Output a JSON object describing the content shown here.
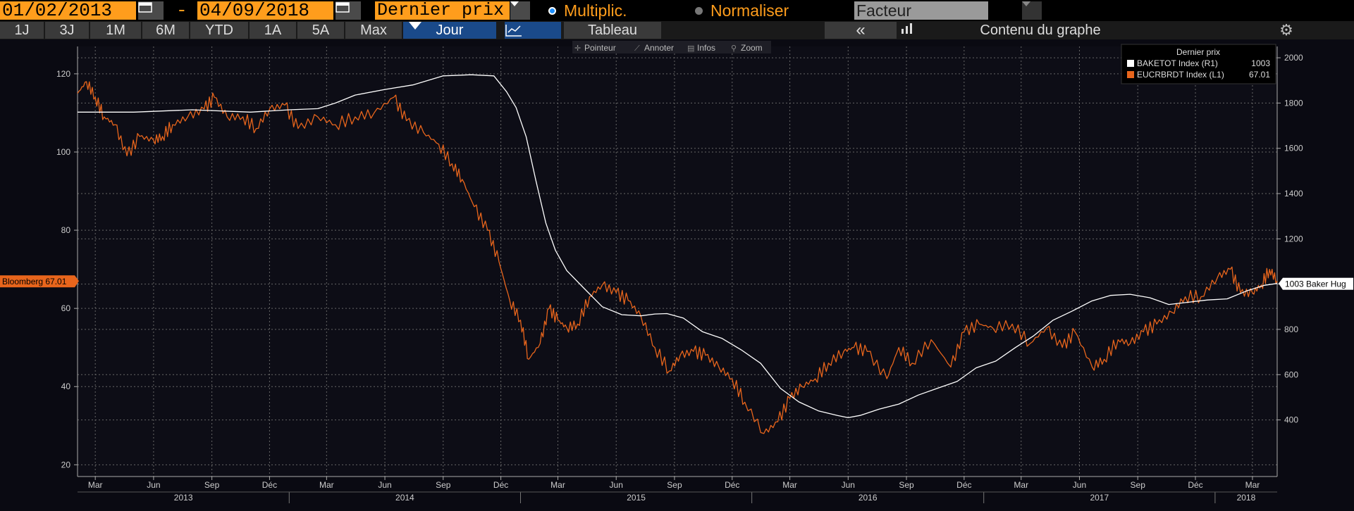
{
  "toolbar": {
    "start_date": "01/02/2013",
    "end_date": "04/09/2018",
    "dash": "-",
    "price_field": "Dernier prix",
    "multiplic_label": "Multiplic.",
    "normaliser_label": "Normaliser",
    "factor_placeholder": "Facteur"
  },
  "tabs": {
    "periods": [
      "1J",
      "3J",
      "1M",
      "6M",
      "YTD",
      "1A",
      "5A",
      "Max"
    ],
    "frequency": "Jour",
    "table_label": "Tableau",
    "collapse_label": "«",
    "chart_content_label": "Contenu du graphe"
  },
  "chart_tools": {
    "pointer": "Pointeur",
    "annotate": "Annoter",
    "info": "Infos",
    "zoom": "Zoom"
  },
  "legend": {
    "title": "Dernier prix",
    "entries": [
      {
        "name": "BAKETOT Index  (R1)",
        "value": "1003",
        "color": "#ffffff"
      },
      {
        "name": "EUCRBRDT Index  (L1)",
        "value": "67.01",
        "color": "#e8651c"
      }
    ]
  },
  "tags": {
    "left": "Bloomberg 67.01",
    "right": "1003 Baker Hug"
  },
  "colors": {
    "brent": "#e8651c",
    "baker": "#ffffff",
    "accent": "#ff9d1c",
    "grid": "#666666"
  },
  "chart_data": {
    "type": "line",
    "x_ticks": [
      "Mar",
      "Jun",
      "Sep",
      "Déc",
      "Mar",
      "Jun",
      "Sep",
      "Déc",
      "Mar",
      "Jun",
      "Sep",
      "Déc",
      "Mar",
      "Jun",
      "Sep",
      "Déc",
      "Mar",
      "Jun",
      "Sep",
      "Déc",
      "Mar"
    ],
    "year_labels": [
      "2013",
      "2014",
      "2015",
      "2016",
      "2017",
      "2018"
    ],
    "left_axis": {
      "ticks": [
        20,
        40,
        60,
        80,
        100,
        120
      ],
      "range": [
        17,
        127
      ]
    },
    "right_axis": {
      "ticks": [
        400,
        600,
        800,
        1000,
        1200,
        1400,
        1600,
        1800,
        2000
      ],
      "range": [
        150,
        2050
      ]
    },
    "x_range": [
      "2013-02-01",
      "2018-04-09"
    ],
    "grid": true,
    "legend_position": "top-right",
    "series": [
      {
        "name": "EUCRBRDT Index",
        "axis": "left",
        "points": [
          [
            "2013-02-01",
            115
          ],
          [
            "2013-02-15",
            118
          ],
          [
            "2013-03-01",
            114
          ],
          [
            "2013-03-15",
            109
          ],
          [
            "2013-04-01",
            107
          ],
          [
            "2013-04-20",
            99
          ],
          [
            "2013-05-10",
            104
          ],
          [
            "2013-06-01",
            103
          ],
          [
            "2013-06-15",
            104
          ],
          [
            "2013-07-01",
            107
          ],
          [
            "2013-07-25",
            109
          ],
          [
            "2013-08-20",
            111
          ],
          [
            "2013-09-05",
            114
          ],
          [
            "2013-09-25",
            109
          ],
          [
            "2013-10-20",
            109
          ],
          [
            "2013-11-10",
            106
          ],
          [
            "2013-12-01",
            111
          ],
          [
            "2013-12-25",
            112
          ],
          [
            "2014-01-15",
            106
          ],
          [
            "2014-02-15",
            109
          ],
          [
            "2014-03-15",
            107
          ],
          [
            "2014-04-15",
            109
          ],
          [
            "2014-05-15",
            110
          ],
          [
            "2014-06-15",
            114
          ],
          [
            "2014-07-05",
            108
          ],
          [
            "2014-08-01",
            105
          ],
          [
            "2014-08-25",
            102
          ],
          [
            "2014-09-15",
            97
          ],
          [
            "2014-10-01",
            93
          ],
          [
            "2014-10-20",
            86
          ],
          [
            "2014-11-10",
            80
          ],
          [
            "2014-11-28",
            72
          ],
          [
            "2014-12-15",
            62
          ],
          [
            "2015-01-01",
            57
          ],
          [
            "2015-01-14",
            47
          ],
          [
            "2015-02-01",
            51
          ],
          [
            "2015-02-15",
            60
          ],
          [
            "2015-03-01",
            57
          ],
          [
            "2015-03-15",
            55
          ],
          [
            "2015-04-01",
            56
          ],
          [
            "2015-04-20",
            63
          ],
          [
            "2015-05-10",
            66
          ],
          [
            "2015-06-01",
            64
          ],
          [
            "2015-06-20",
            62
          ],
          [
            "2015-07-10",
            58
          ],
          [
            "2015-08-01",
            50
          ],
          [
            "2015-08-24",
            44
          ],
          [
            "2015-09-10",
            48
          ],
          [
            "2015-10-01",
            49
          ],
          [
            "2015-10-20",
            48
          ],
          [
            "2015-11-10",
            45
          ],
          [
            "2015-12-01",
            42
          ],
          [
            "2015-12-21",
            36
          ],
          [
            "2016-01-20",
            28
          ],
          [
            "2016-02-11",
            31
          ],
          [
            "2016-03-01",
            37
          ],
          [
            "2016-03-20",
            40
          ],
          [
            "2016-04-10",
            42
          ],
          [
            "2016-05-01",
            46
          ],
          [
            "2016-05-25",
            49
          ],
          [
            "2016-06-10",
            50
          ],
          [
            "2016-07-01",
            49
          ],
          [
            "2016-08-01",
            42
          ],
          [
            "2016-08-20",
            50
          ],
          [
            "2016-09-10",
            46
          ],
          [
            "2016-10-10",
            52
          ],
          [
            "2016-11-10",
            45
          ],
          [
            "2016-12-01",
            54
          ],
          [
            "2016-12-25",
            56
          ],
          [
            "2017-01-15",
            55
          ],
          [
            "2017-02-15",
            56
          ],
          [
            "2017-03-15",
            51
          ],
          [
            "2017-04-10",
            55
          ],
          [
            "2017-05-05",
            50
          ],
          [
            "2017-05-25",
            54
          ],
          [
            "2017-06-21",
            45
          ],
          [
            "2017-07-10",
            47
          ],
          [
            "2017-08-01",
            52
          ],
          [
            "2017-08-20",
            51
          ],
          [
            "2017-09-10",
            54
          ],
          [
            "2017-10-01",
            56
          ],
          [
            "2017-10-25",
            59
          ],
          [
            "2017-11-15",
            63
          ],
          [
            "2017-12-10",
            63
          ],
          [
            "2018-01-05",
            68
          ],
          [
            "2018-01-25",
            70
          ],
          [
            "2018-02-10",
            64
          ],
          [
            "2018-03-01",
            64
          ],
          [
            "2018-03-15",
            66
          ],
          [
            "2018-03-28",
            70
          ],
          [
            "2018-04-09",
            67.01
          ]
        ]
      },
      {
        "name": "BAKETOT Index",
        "axis": "right",
        "points": [
          [
            "2013-02-01",
            1760
          ],
          [
            "2013-05-01",
            1760
          ],
          [
            "2013-08-01",
            1770
          ],
          [
            "2013-11-01",
            1760
          ],
          [
            "2014-01-01",
            1770
          ],
          [
            "2014-02-15",
            1775
          ],
          [
            "2014-03-15",
            1800
          ],
          [
            "2014-04-15",
            1835
          ],
          [
            "2014-06-01",
            1860
          ],
          [
            "2014-07-15",
            1880
          ],
          [
            "2014-09-01",
            1920
          ],
          [
            "2014-10-15",
            1925
          ],
          [
            "2014-11-20",
            1920
          ],
          [
            "2014-12-10",
            1850
          ],
          [
            "2014-12-25",
            1780
          ],
          [
            "2015-01-10",
            1650
          ],
          [
            "2015-01-25",
            1460
          ],
          [
            "2015-02-10",
            1270
          ],
          [
            "2015-02-25",
            1150
          ],
          [
            "2015-03-15",
            1060
          ],
          [
            "2015-04-10",
            985
          ],
          [
            "2015-05-10",
            900
          ],
          [
            "2015-06-10",
            865
          ],
          [
            "2015-07-10",
            860
          ],
          [
            "2015-08-01",
            868
          ],
          [
            "2015-08-20",
            870
          ],
          [
            "2015-09-15",
            850
          ],
          [
            "2015-10-15",
            790
          ],
          [
            "2015-11-15",
            760
          ],
          [
            "2015-12-15",
            710
          ],
          [
            "2016-01-15",
            650
          ],
          [
            "2016-02-15",
            540
          ],
          [
            "2016-03-15",
            480
          ],
          [
            "2016-04-15",
            440
          ],
          [
            "2016-05-15",
            420
          ],
          [
            "2016-06-01",
            410
          ],
          [
            "2016-06-20",
            420
          ],
          [
            "2016-07-20",
            448
          ],
          [
            "2016-08-20",
            470
          ],
          [
            "2016-09-20",
            510
          ],
          [
            "2016-10-20",
            540
          ],
          [
            "2016-11-20",
            570
          ],
          [
            "2016-12-20",
            630
          ],
          [
            "2017-01-20",
            660
          ],
          [
            "2017-02-20",
            720
          ],
          [
            "2017-03-20",
            770
          ],
          [
            "2017-04-20",
            840
          ],
          [
            "2017-05-20",
            880
          ],
          [
            "2017-06-20",
            925
          ],
          [
            "2017-07-20",
            950
          ],
          [
            "2017-08-20",
            955
          ],
          [
            "2017-09-20",
            940
          ],
          [
            "2017-10-20",
            910
          ],
          [
            "2017-11-20",
            920
          ],
          [
            "2017-12-20",
            930
          ],
          [
            "2018-01-20",
            935
          ],
          [
            "2018-02-20",
            970
          ],
          [
            "2018-03-20",
            995
          ],
          [
            "2018-04-09",
            1003
          ]
        ]
      }
    ]
  }
}
